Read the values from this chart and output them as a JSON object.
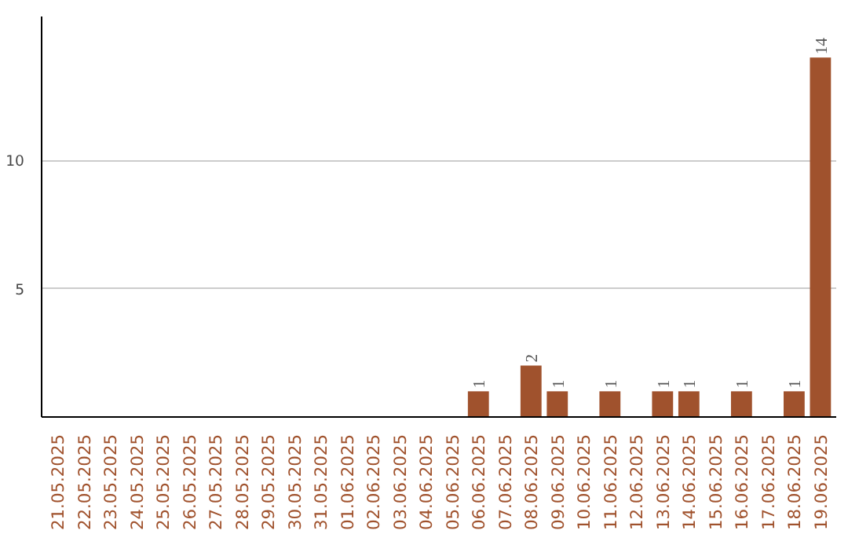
{
  "chart_data": {
    "type": "bar",
    "categories": [
      "21.05.2025",
      "22.05.2025",
      "23.05.2025",
      "24.05.2025",
      "25.05.2025",
      "26.05.2025",
      "27.05.2025",
      "28.05.2025",
      "29.05.2025",
      "30.05.2025",
      "31.05.2025",
      "01.06.2025",
      "02.06.2025",
      "03.06.2025",
      "04.06.2025",
      "05.06.2025",
      "06.06.2025",
      "07.06.2025",
      "08.06.2025",
      "09.06.2025",
      "10.06.2025",
      "11.06.2025",
      "12.06.2025",
      "13.06.2025",
      "14.06.2025",
      "15.06.2025",
      "16.06.2025",
      "17.06.2025",
      "18.06.2025",
      "19.06.2025"
    ],
    "values": [
      0,
      0,
      0,
      0,
      0,
      0,
      0,
      0,
      0,
      0,
      0,
      0,
      0,
      0,
      0,
      0,
      1,
      0,
      2,
      1,
      0,
      1,
      0,
      1,
      1,
      0,
      1,
      0,
      1,
      14
    ],
    "value_labels": [
      null,
      null,
      null,
      null,
      null,
      null,
      null,
      null,
      null,
      null,
      null,
      null,
      null,
      null,
      null,
      null,
      "1",
      null,
      "2",
      "1",
      null,
      "1",
      null,
      "1",
      "1",
      null,
      "1",
      null,
      "1",
      "14"
    ],
    "color": "#a0522d",
    "ylim": [
      0,
      15.6
    ],
    "yticks": [
      5,
      10
    ],
    "grid": "y"
  }
}
